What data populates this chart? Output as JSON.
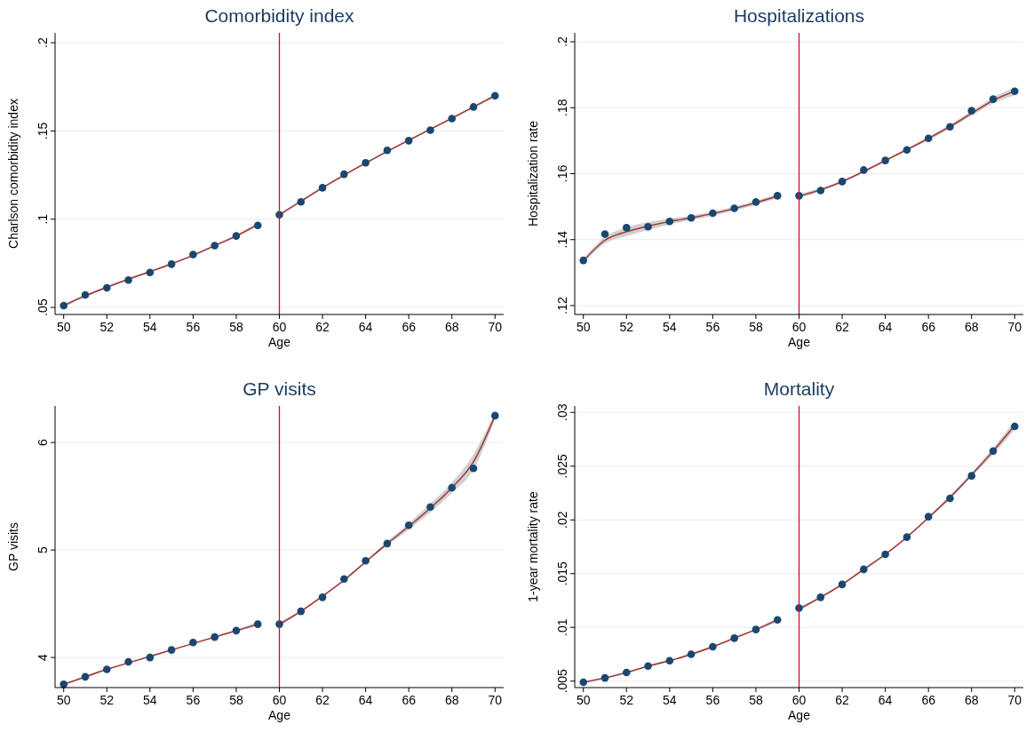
{
  "chart_data": [
    {
      "type": "scatter",
      "title": "Comorbidity index",
      "xlabel": "Age",
      "ylabel": "Charlson comorbidity index",
      "x": [
        50,
        51,
        52,
        53,
        54,
        55,
        56,
        57,
        58,
        59,
        60,
        61,
        62,
        63,
        64,
        65,
        66,
        67,
        68,
        69,
        70
      ],
      "xlim": [
        49.6,
        70.4
      ],
      "xticks": [
        50,
        52,
        54,
        56,
        58,
        60,
        62,
        64,
        66,
        68,
        70
      ],
      "ylim": [
        0.046,
        0.2056
      ],
      "yticks": [
        {
          "value": 0.05,
          "label": ".05"
        },
        {
          "value": 0.1,
          "label": ".1"
        },
        {
          "value": 0.15,
          "label": ".15"
        },
        {
          "value": 0.2,
          "label": ".2"
        }
      ],
      "grid": "y",
      "marker": "circle",
      "ref_lines": [
        {
          "axis": "x",
          "value": 60,
          "color": "#c8102e"
        }
      ],
      "series": [
        {
          "type": "line",
          "marker": "none",
          "color": "#a03030",
          "x": [
            50,
            51,
            52,
            53,
            54,
            55,
            56,
            57,
            58,
            59
          ],
          "values": [
            0.051,
            0.0566,
            0.0614,
            0.066,
            0.0703,
            0.0747,
            0.0795,
            0.085,
            0.0905,
            0.097
          ],
          "lower": [
            0.0502,
            0.0559,
            0.0608,
            0.0655,
            0.0698,
            0.0742,
            0.079,
            0.0844,
            0.0898,
            0.0961
          ],
          "upper": [
            0.0518,
            0.0573,
            0.062,
            0.0665,
            0.0708,
            0.0752,
            0.08,
            0.0856,
            0.0912,
            0.0979
          ]
        },
        {
          "type": "line",
          "marker": "none",
          "color": "#a03030",
          "x": [
            60,
            61,
            62,
            63,
            64,
            65,
            66,
            67,
            68,
            69,
            70
          ],
          "values": [
            0.1025,
            0.1102,
            0.1178,
            0.125,
            0.1318,
            0.1384,
            0.1448,
            0.151,
            0.1572,
            0.1636,
            0.17
          ],
          "lower": [
            0.1016,
            0.1095,
            0.1172,
            0.1245,
            0.1313,
            0.1379,
            0.1443,
            0.1505,
            0.1566,
            0.1629,
            0.169
          ],
          "upper": [
            0.1034,
            0.1109,
            0.1184,
            0.1255,
            0.1323,
            0.1389,
            0.1453,
            0.1515,
            0.1578,
            0.1643,
            0.171
          ]
        },
        {
          "color": "#1a476f",
          "values": [
            0.051,
            0.0571,
            0.0611,
            0.0655,
            0.0698,
            0.0745,
            0.08,
            0.085,
            0.0905,
            0.0965,
            0.1025,
            0.1098,
            0.1178,
            0.1255,
            0.132,
            0.139,
            0.1445,
            0.1505,
            0.157,
            0.1636,
            0.17
          ]
        }
      ]
    },
    {
      "type": "scatter",
      "title": "Hospitalizations",
      "xlabel": "Age",
      "ylabel": "Hospitalization rate",
      "x": [
        50,
        51,
        52,
        53,
        54,
        55,
        56,
        57,
        58,
        59,
        60,
        61,
        62,
        63,
        64,
        65,
        66,
        67,
        68,
        69,
        70
      ],
      "xlim": [
        49.6,
        70.4
      ],
      "xticks": [
        50,
        52,
        54,
        56,
        58,
        60,
        62,
        64,
        66,
        68,
        70
      ],
      "ylim": [
        0.1173,
        0.2027
      ],
      "yticks": [
        {
          "value": 0.12,
          "label": ".12"
        },
        {
          "value": 0.14,
          "label": ".14"
        },
        {
          "value": 0.16,
          "label": ".16"
        },
        {
          "value": 0.18,
          "label": ".18"
        },
        {
          "value": 0.2,
          "label": ".2"
        }
      ],
      "grid": "y",
      "marker": "circle",
      "ref_lines": [
        {
          "axis": "x",
          "value": 60,
          "color": "#c8102e"
        }
      ],
      "series": [
        {
          "type": "line",
          "marker": "none",
          "color": "#a03030",
          "x": [
            50,
            51,
            52,
            53,
            54,
            55,
            56,
            57,
            58,
            59
          ],
          "values": [
            0.1335,
            0.1398,
            0.1424,
            0.1441,
            0.1455,
            0.1466,
            0.1479,
            0.1494,
            0.1512,
            0.1532
          ],
          "lower": [
            0.1328,
            0.1388,
            0.1411,
            0.1429,
            0.1446,
            0.1459,
            0.1473,
            0.1488,
            0.1506,
            0.1525
          ],
          "upper": [
            0.1342,
            0.1408,
            0.1437,
            0.1453,
            0.1464,
            0.1473,
            0.1485,
            0.15,
            0.1518,
            0.1539
          ]
        },
        {
          "type": "line",
          "marker": "none",
          "color": "#a03030",
          "x": [
            60,
            61,
            62,
            63,
            64,
            65,
            66,
            67,
            68,
            69,
            70
          ],
          "values": [
            0.1532,
            0.1551,
            0.1576,
            0.1607,
            0.164,
            0.1673,
            0.1707,
            0.1743,
            0.1783,
            0.1822,
            0.185
          ],
          "lower": [
            0.1526,
            0.1546,
            0.1572,
            0.1603,
            0.1636,
            0.1669,
            0.1702,
            0.1737,
            0.1776,
            0.1813,
            0.1838
          ],
          "upper": [
            0.1538,
            0.1556,
            0.158,
            0.1611,
            0.1644,
            0.1677,
            0.1712,
            0.1749,
            0.179,
            0.1831,
            0.1862
          ]
        },
        {
          "color": "#1a476f",
          "values": [
            0.1337,
            0.1417,
            0.1436,
            0.1439,
            0.1455,
            0.1466,
            0.148,
            0.1495,
            0.1514,
            0.1533,
            0.1533,
            0.1549,
            0.1576,
            0.1611,
            0.164,
            0.1672,
            0.1707,
            0.1742,
            0.1791,
            0.1826,
            0.185
          ]
        }
      ]
    },
    {
      "type": "scatter",
      "title": "GP visits",
      "xlabel": "Age",
      "ylabel": "GP visits",
      "x": [
        50,
        51,
        52,
        53,
        54,
        55,
        56,
        57,
        58,
        59,
        60,
        61,
        62,
        63,
        64,
        65,
        66,
        67,
        68,
        69,
        70
      ],
      "xlim": [
        49.6,
        70.4
      ],
      "xticks": [
        50,
        52,
        54,
        56,
        58,
        60,
        62,
        64,
        66,
        68,
        70
      ],
      "ylim": [
        3.72,
        6.34
      ],
      "yticks": [
        4,
        5,
        6
      ],
      "grid": "y",
      "marker": "circle",
      "ref_lines": [
        {
          "axis": "x",
          "value": 60,
          "color": "#c8102e"
        }
      ],
      "series": [
        {
          "type": "line",
          "marker": "none",
          "color": "#a03030",
          "x": [
            50,
            51,
            52,
            53,
            54,
            55,
            56,
            57,
            58,
            59
          ],
          "values": [
            3.75,
            3.82,
            3.89,
            3.95,
            4.01,
            4.07,
            4.13,
            4.19,
            4.25,
            4.31
          ],
          "lower": [
            3.74,
            3.81,
            3.88,
            3.945,
            4.0,
            4.065,
            4.125,
            4.18,
            4.24,
            4.29
          ],
          "upper": [
            3.76,
            3.83,
            3.9,
            3.955,
            4.02,
            4.075,
            4.135,
            4.2,
            4.26,
            4.33
          ]
        },
        {
          "type": "line",
          "marker": "none",
          "color": "#a03030",
          "x": [
            60,
            61,
            62,
            63,
            64,
            65,
            66,
            67,
            68,
            69,
            70
          ],
          "values": [
            4.31,
            4.43,
            4.57,
            4.72,
            4.89,
            5.06,
            5.22,
            5.39,
            5.58,
            5.82,
            6.25
          ],
          "lower": [
            4.29,
            4.42,
            4.56,
            4.71,
            4.88,
            5.04,
            5.19,
            5.35,
            5.53,
            5.75,
            6.22
          ],
          "upper": [
            4.33,
            4.44,
            4.58,
            4.73,
            4.9,
            5.08,
            5.25,
            5.43,
            5.63,
            5.89,
            6.28
          ]
        },
        {
          "color": "#1a476f",
          "values": [
            3.75,
            3.82,
            3.89,
            3.96,
            4.0,
            4.07,
            4.14,
            4.19,
            4.25,
            4.31,
            4.31,
            4.43,
            4.56,
            4.73,
            4.9,
            5.06,
            5.23,
            5.4,
            5.58,
            5.76,
            6.25
          ]
        }
      ]
    },
    {
      "type": "scatter",
      "title": "Mortality",
      "xlabel": "Age",
      "ylabel": "1-year mortality rate",
      "x": [
        50,
        51,
        52,
        53,
        54,
        55,
        56,
        57,
        58,
        59,
        60,
        61,
        62,
        63,
        64,
        65,
        66,
        67,
        68,
        69,
        70
      ],
      "xlim": [
        49.6,
        70.4
      ],
      "xticks": [
        50,
        52,
        54,
        56,
        58,
        60,
        62,
        64,
        66,
        68,
        70
      ],
      "ylim": [
        0.0044,
        0.0306
      ],
      "yticks": [
        {
          "value": 0.005,
          "label": ".005"
        },
        {
          "value": 0.01,
          "label": ".01"
        },
        {
          "value": 0.015,
          "label": ".015"
        },
        {
          "value": 0.02,
          "label": ".02"
        },
        {
          "value": 0.025,
          "label": ".025"
        },
        {
          "value": 0.03,
          "label": ".03"
        }
      ],
      "grid": "y",
      "marker": "circle",
      "ref_lines": [
        {
          "axis": "x",
          "value": 60,
          "color": "#c8102e"
        }
      ],
      "series": [
        {
          "type": "line",
          "marker": "none",
          "color": "#a03030",
          "x": [
            50,
            51,
            52,
            53,
            54,
            55,
            56,
            57,
            58,
            59
          ],
          "values": [
            0.0049,
            0.0053,
            0.0058,
            0.0064,
            0.0069,
            0.0075,
            0.0082,
            0.009,
            0.0098,
            0.0107
          ],
          "lower": [
            0.0048,
            0.0052,
            0.0057,
            0.0063,
            0.0068,
            0.0074,
            0.0081,
            0.0089,
            0.0097,
            0.0105
          ],
          "upper": [
            0.005,
            0.0054,
            0.0059,
            0.0065,
            0.007,
            0.0076,
            0.0083,
            0.0091,
            0.0099,
            0.0109
          ]
        },
        {
          "type": "line",
          "marker": "none",
          "color": "#a03030",
          "x": [
            60,
            61,
            62,
            63,
            64,
            65,
            66,
            67,
            68,
            69,
            70
          ],
          "values": [
            0.0117,
            0.0128,
            0.014,
            0.0154,
            0.0168,
            0.0184,
            0.0202,
            0.0221,
            0.0242,
            0.0264,
            0.0288
          ],
          "lower": [
            0.0115,
            0.0127,
            0.0139,
            0.0153,
            0.0167,
            0.0183,
            0.0201,
            0.0219,
            0.024,
            0.0261,
            0.0284
          ],
          "upper": [
            0.0119,
            0.0129,
            0.0141,
            0.0155,
            0.0169,
            0.0185,
            0.0203,
            0.0223,
            0.0244,
            0.0267,
            0.0292
          ]
        },
        {
          "color": "#1a476f",
          "values": [
            0.0049,
            0.0053,
            0.0058,
            0.0064,
            0.0069,
            0.0075,
            0.0082,
            0.009,
            0.0098,
            0.0107,
            0.0118,
            0.0128,
            0.014,
            0.0154,
            0.0168,
            0.0184,
            0.0203,
            0.022,
            0.0241,
            0.0264,
            0.0287
          ]
        }
      ]
    }
  ]
}
